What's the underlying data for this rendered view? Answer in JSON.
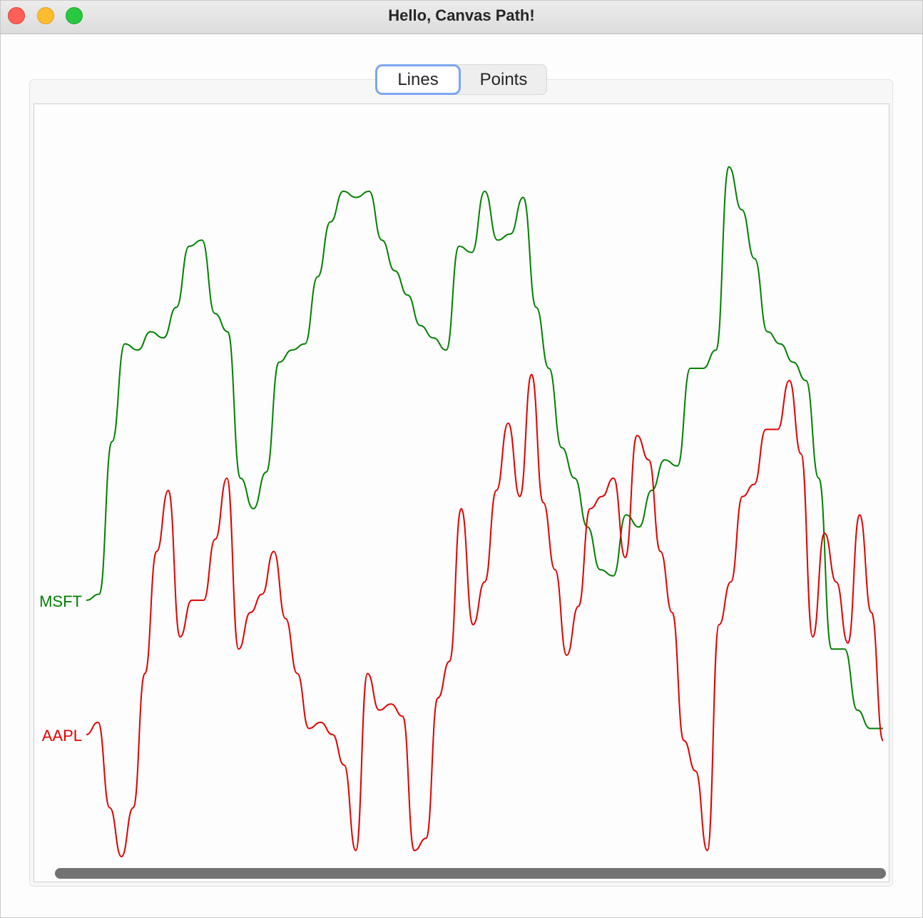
{
  "window": {
    "title": "Hello, Canvas Path!"
  },
  "segmented_control": {
    "options": [
      "Lines",
      "Points"
    ],
    "selected": "Lines"
  },
  "colors": {
    "msft": "#008000",
    "aapl": "#e00000",
    "focus_ring": "#7ea6f0"
  },
  "chart_data": {
    "type": "line",
    "title": "",
    "xlabel": "",
    "ylabel": "",
    "grid": false,
    "series": [
      {
        "name": "MSFT",
        "color": "#008000",
        "values": [
          78,
          77,
          52,
          36,
          37,
          34,
          35,
          30,
          20,
          19,
          31,
          34,
          58,
          63,
          57,
          39,
          37,
          36,
          25,
          16,
          11,
          12,
          11,
          19,
          24,
          28,
          33,
          35,
          37,
          20,
          21,
          11,
          19,
          18,
          12,
          30,
          40,
          53,
          58,
          66,
          73,
          74,
          64,
          66,
          60,
          55,
          56,
          40,
          40,
          37,
          7,
          14,
          22,
          34,
          36,
          39,
          42,
          58,
          86,
          86,
          96,
          99,
          99
        ]
      },
      {
        "name": "AAPL",
        "color": "#e00000",
        "values": [
          100,
          98,
          112,
          120,
          112,
          90,
          70,
          60,
          84,
          78,
          78,
          68,
          58,
          86,
          80,
          77,
          70,
          81,
          90,
          99,
          98,
          100,
          105,
          119,
          90,
          96,
          95,
          97,
          119,
          117,
          94,
          88,
          63,
          82,
          75,
          60,
          49,
          61,
          41,
          62,
          73,
          87,
          79,
          63,
          61,
          58,
          71,
          51,
          55,
          70,
          80,
          101,
          106,
          119,
          82,
          75,
          61,
          59,
          50,
          50,
          42,
          54,
          84,
          67,
          75,
          85,
          64,
          80,
          101
        ]
      }
    ]
  }
}
